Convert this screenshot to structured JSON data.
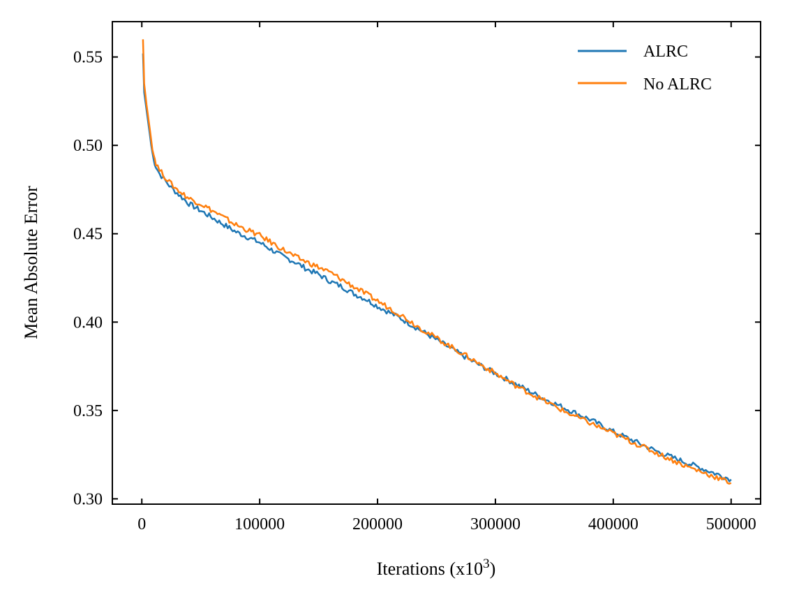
{
  "chart_data": {
    "type": "line",
    "title": "",
    "xlabel": "Iterations (x10",
    "xlabel_sup": "3",
    "xlabel_close": ")",
    "ylabel": "Mean Absolute Error",
    "xlim": [
      -25000,
      525000
    ],
    "ylim": [
      0.297,
      0.57
    ],
    "xticks": [
      0,
      100000,
      200000,
      300000,
      400000,
      500000
    ],
    "xtick_labels": [
      "0",
      "100000",
      "200000",
      "300000",
      "400000",
      "500000"
    ],
    "yticks": [
      0.3,
      0.35,
      0.4,
      0.45,
      0.5,
      0.55
    ],
    "ytick_labels": [
      "0.30",
      "0.35",
      "0.40",
      "0.45",
      "0.50",
      "0.55"
    ],
    "grid": false,
    "legend_position": "top-right",
    "series": [
      {
        "name": "ALRC",
        "color": "#1f77b4",
        "x": [
          1000,
          2000,
          4000,
          6000,
          8000,
          10000,
          12000,
          15000,
          20000,
          25000,
          30000,
          40000,
          50000,
          60000,
          70000,
          80000,
          90000,
          100000,
          110000,
          120000,
          130000,
          140000,
          150000,
          160000,
          170000,
          180000,
          190000,
          200000,
          220000,
          240000,
          260000,
          280000,
          300000,
          320000,
          340000,
          360000,
          380000,
          400000,
          420000,
          440000,
          460000,
          480000,
          500000
        ],
        "y": [
          0.552,
          0.53,
          0.52,
          0.51,
          0.5,
          0.492,
          0.488,
          0.484,
          0.48,
          0.476,
          0.473,
          0.467,
          0.463,
          0.459,
          0.455,
          0.451,
          0.448,
          0.445,
          0.441,
          0.437,
          0.434,
          0.43,
          0.427,
          0.423,
          0.42,
          0.416,
          0.413,
          0.409,
          0.402,
          0.394,
          0.386,
          0.378,
          0.371,
          0.364,
          0.357,
          0.351,
          0.345,
          0.338,
          0.332,
          0.326,
          0.321,
          0.316,
          0.311
        ]
      },
      {
        "name": "No ALRC",
        "color": "#ff7f0e",
        "x": [
          1000,
          2000,
          4000,
          6000,
          8000,
          10000,
          12000,
          15000,
          20000,
          25000,
          30000,
          40000,
          50000,
          60000,
          70000,
          80000,
          90000,
          100000,
          110000,
          120000,
          130000,
          140000,
          150000,
          160000,
          170000,
          180000,
          190000,
          200000,
          220000,
          240000,
          260000,
          280000,
          300000,
          320000,
          340000,
          360000,
          380000,
          400000,
          420000,
          440000,
          460000,
          480000,
          500000
        ],
        "y": [
          0.56,
          0.535,
          0.523,
          0.513,
          0.503,
          0.495,
          0.49,
          0.486,
          0.482,
          0.478,
          0.475,
          0.47,
          0.467,
          0.463,
          0.459,
          0.455,
          0.452,
          0.449,
          0.445,
          0.441,
          0.437,
          0.434,
          0.431,
          0.428,
          0.424,
          0.42,
          0.416,
          0.412,
          0.404,
          0.395,
          0.387,
          0.379,
          0.371,
          0.363,
          0.356,
          0.349,
          0.343,
          0.337,
          0.331,
          0.325,
          0.319,
          0.314,
          0.309
        ]
      }
    ]
  }
}
